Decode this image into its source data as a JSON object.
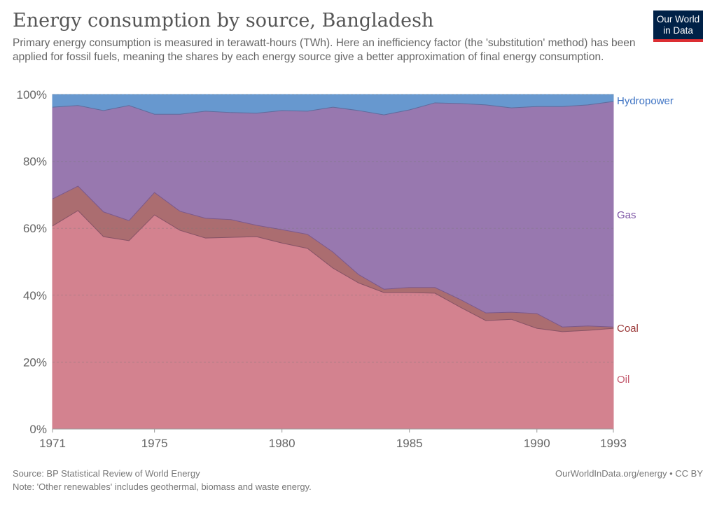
{
  "header": {
    "title": "Energy consumption by source, Bangladesh",
    "subtitle": "Primary energy consumption is measured in terawatt-hours (TWh). Here an inefficiency factor (the 'substitution' method) has been applied for fossil fuels, meaning the shares by each energy source give a better approximation of final energy consumption.",
    "logo": "Our World in Data"
  },
  "footer": {
    "source": "Source: BP Statistical Review of World Energy",
    "note": "Note: 'Other renewables' includes geothermal, biomass and waste energy.",
    "credit": "OurWorldInData.org/energy • CC BY"
  },
  "chart_data": {
    "type": "area",
    "stacked": true,
    "unit": "%",
    "x": [
      1971,
      1972,
      1973,
      1974,
      1975,
      1976,
      1977,
      1978,
      1979,
      1980,
      1981,
      1982,
      1983,
      1984,
      1985,
      1986,
      1987,
      1988,
      1989,
      1990,
      1991,
      1992,
      1993
    ],
    "series": [
      {
        "name": "Oil",
        "color": "#d3828f",
        "label_color": "#c45a6e",
        "values": [
          60.7,
          65.3,
          57.5,
          56.3,
          64.0,
          59.4,
          57.1,
          57.3,
          57.5,
          55.6,
          54.0,
          48.1,
          43.7,
          40.8,
          40.8,
          40.6,
          36.4,
          32.4,
          32.8,
          30.1,
          29.1,
          29.5,
          30.1
        ]
      },
      {
        "name": "Coal",
        "color": "#ab6d70",
        "label_color": "#9a3838",
        "values": [
          8.1,
          7.3,
          7.4,
          6.0,
          6.7,
          5.7,
          5.9,
          5.3,
          3.4,
          4.0,
          4.2,
          4.8,
          2.5,
          1.0,
          1.5,
          1.7,
          2.3,
          2.3,
          2.1,
          4.4,
          1.4,
          1.3,
          0.4
        ]
      },
      {
        "name": "Gas",
        "color": "#9878af",
        "label_color": "#7e56a6",
        "values": [
          27.4,
          24.1,
          30.3,
          34.4,
          23.4,
          29.0,
          32.0,
          32.0,
          33.5,
          35.6,
          36.8,
          43.3,
          49.0,
          52.1,
          53.1,
          55.2,
          58.6,
          62.2,
          61.1,
          61.9,
          65.9,
          66.1,
          67.4
        ]
      },
      {
        "name": "Hydropower",
        "color": "#6798cf",
        "label_color": "#3f74c4",
        "values": [
          3.8,
          3.3,
          4.8,
          3.3,
          5.9,
          5.9,
          5.0,
          5.4,
          5.6,
          4.8,
          5.0,
          3.8,
          4.8,
          6.1,
          4.6,
          2.5,
          2.7,
          3.1,
          4.0,
          3.6,
          3.6,
          3.1,
          2.1
        ]
      }
    ],
    "ylim": [
      0,
      100
    ],
    "y_ticks": [
      "0%",
      "20%",
      "40%",
      "60%",
      "80%",
      "100%"
    ],
    "x_ticks": [
      "1971",
      "1975",
      "1980",
      "1985",
      "1990",
      "1993"
    ],
    "grid": true,
    "legend": "right-inline"
  }
}
